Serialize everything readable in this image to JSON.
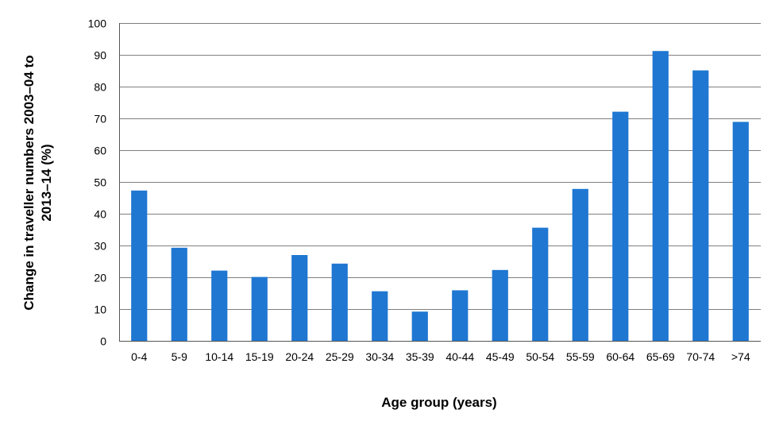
{
  "chart_data": {
    "type": "bar",
    "title": "",
    "xlabel": "Age group (years)",
    "ylabel_lines": [
      "Change in traveller numbers 2003–04 to",
      "2013–14 (%)"
    ],
    "categories": [
      "0-4",
      "5-9",
      "10-14",
      "15-19",
      "20-24",
      "25-29",
      "30-34",
      "35-39",
      "40-44",
      "45-49",
      "50-54",
      "55-59",
      "60-64",
      "65-69",
      "70-74",
      ">74"
    ],
    "values": [
      47.3,
      29.3,
      22.1,
      20.1,
      27.0,
      24.3,
      15.6,
      9.2,
      15.9,
      22.3,
      35.6,
      47.8,
      72.1,
      91.2,
      85.1,
      68.9
    ],
    "ylim": [
      0,
      100
    ],
    "yticks": [
      0,
      10,
      20,
      30,
      40,
      50,
      60,
      70,
      80,
      90,
      100
    ],
    "grid": true,
    "bar_color": "#1f77d2",
    "grid_color": "#7f7f7f",
    "axis_color": "#555555"
  }
}
